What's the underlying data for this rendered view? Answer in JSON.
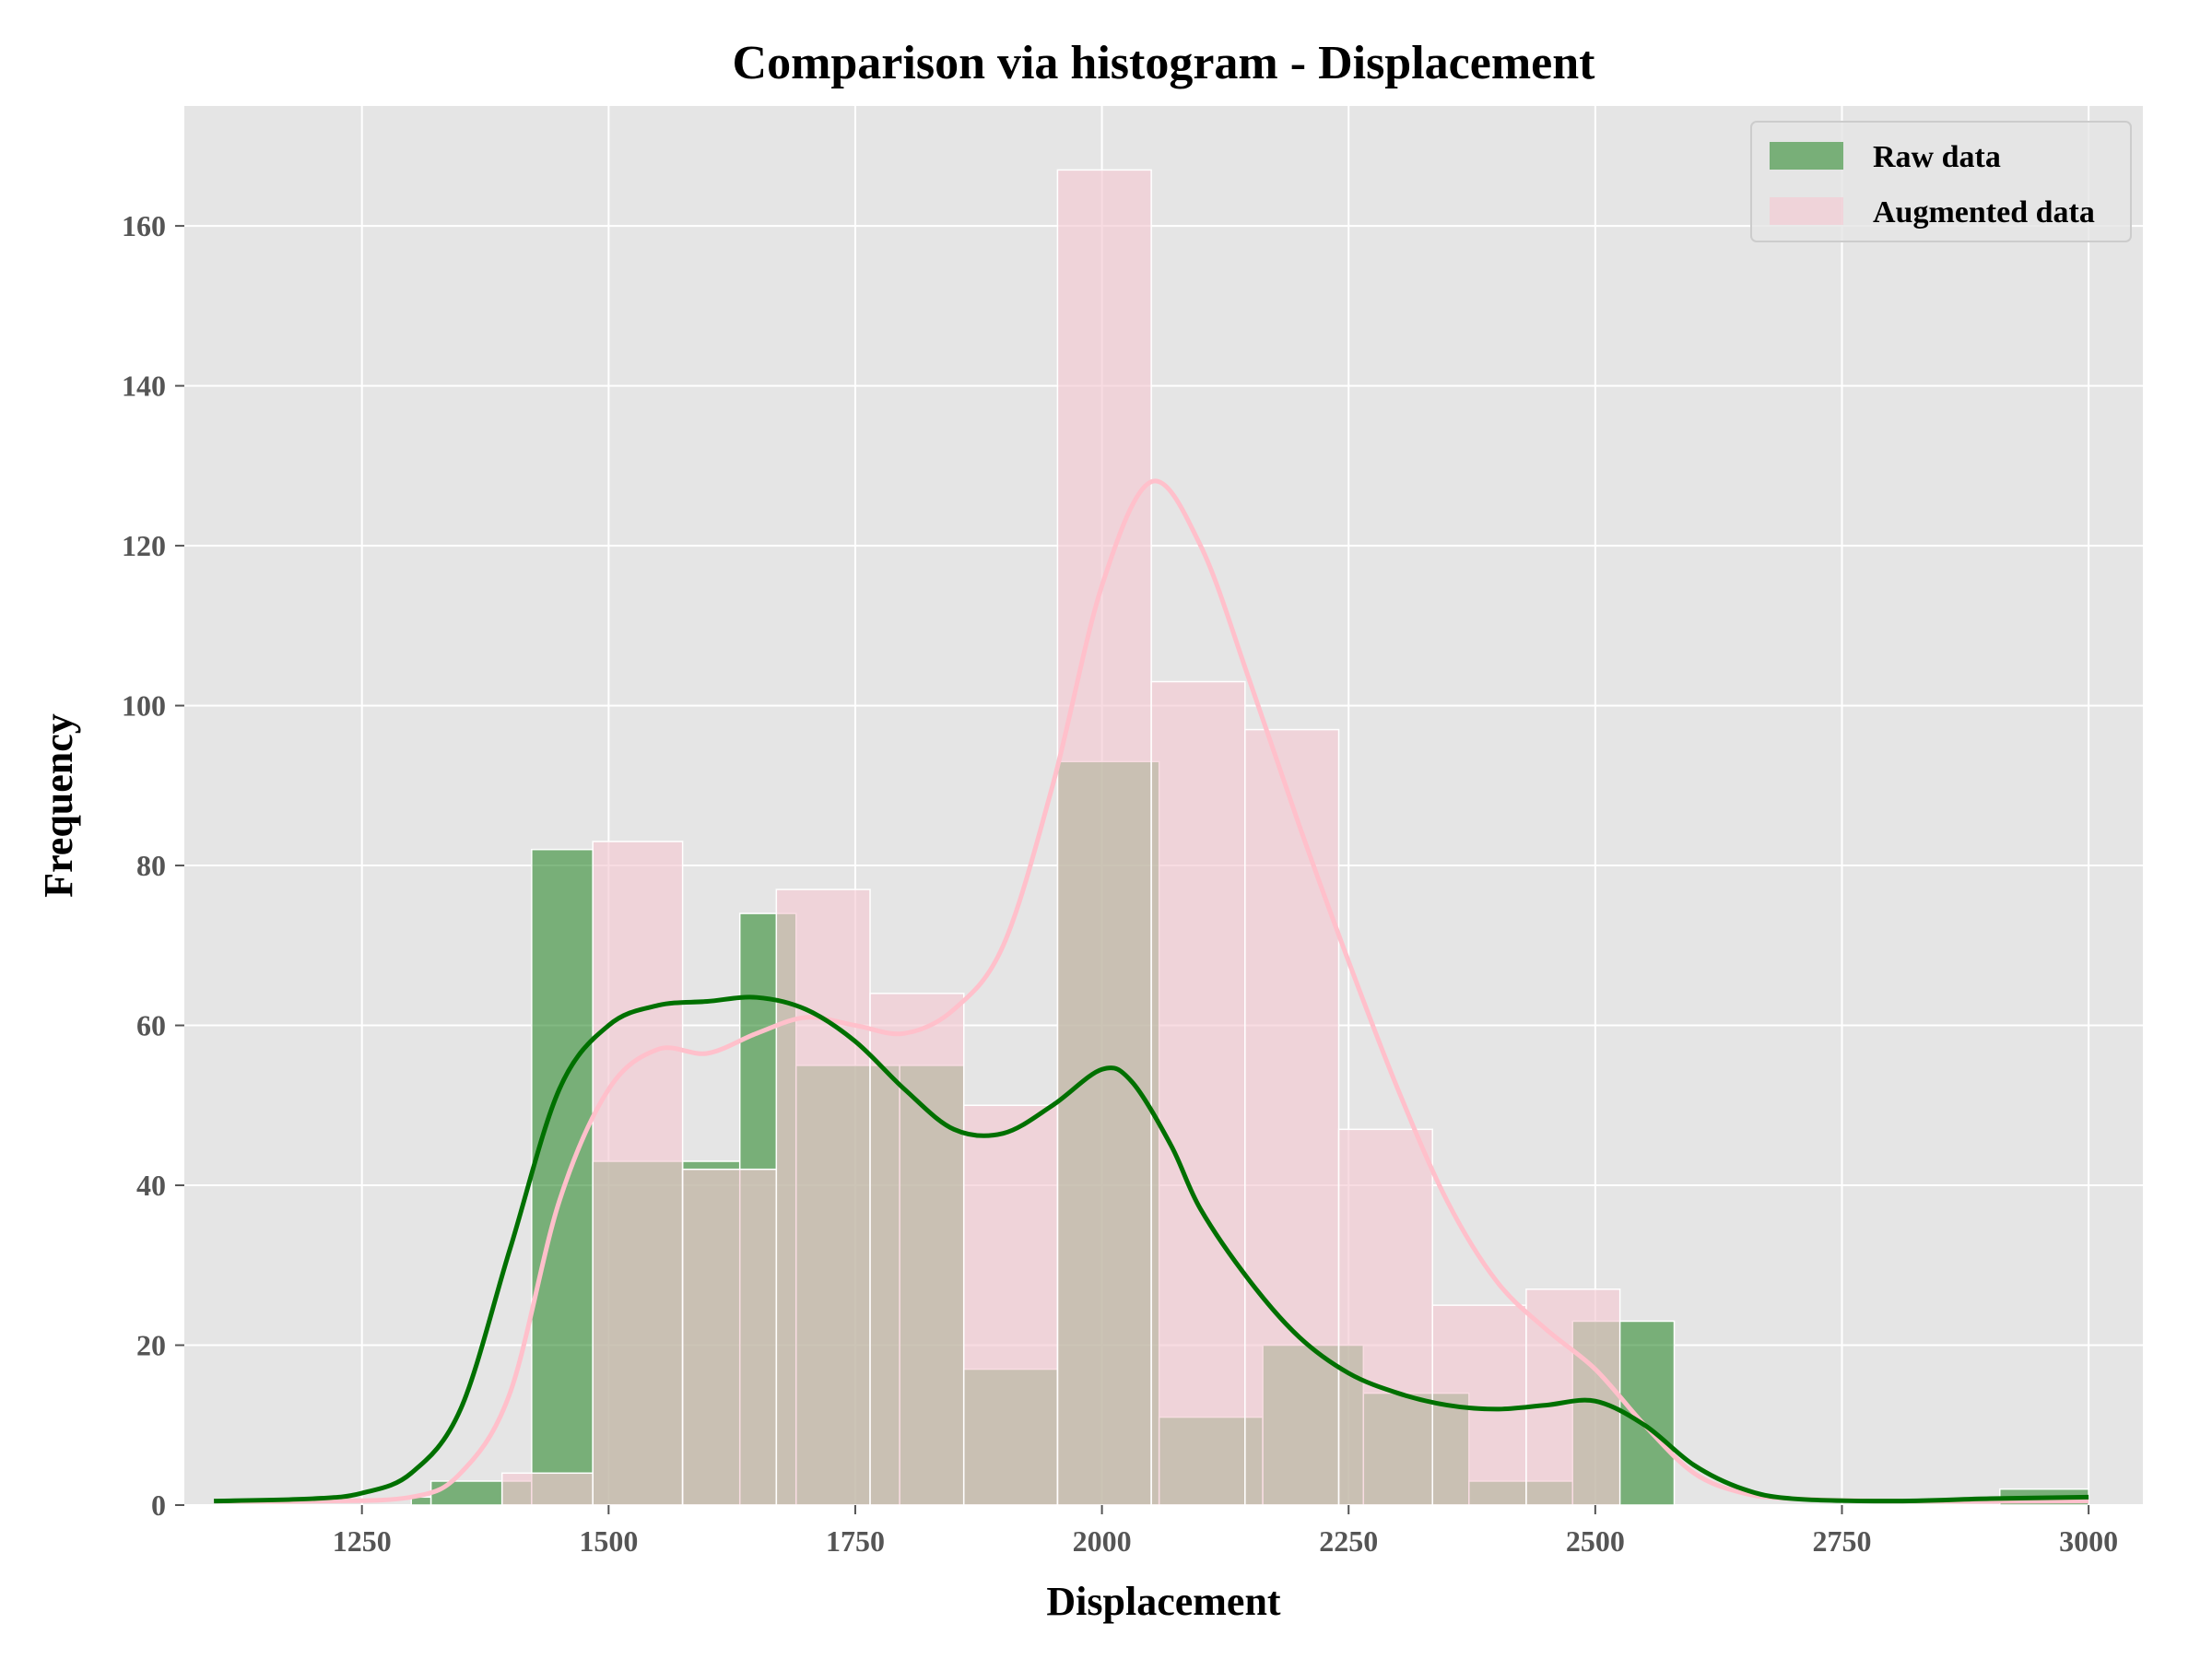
{
  "chart_data": {
    "type": "histogram",
    "title": "Comparison via histogram - Displacement",
    "xlabel": "Displacement",
    "ylabel": "Frequency",
    "xlim": [
      1070,
      3055
    ],
    "ylim": [
      0,
      175
    ],
    "xticks": [
      1250,
      1500,
      1750,
      2000,
      2250,
      2500,
      2750,
      3000
    ],
    "yticks": [
      0,
      20,
      40,
      60,
      80,
      100,
      120,
      140,
      160
    ],
    "grid": true,
    "legend_position": "top-right",
    "background": "#e5e5e5",
    "series": [
      {
        "name": "Raw data",
        "color": "#2e8b2e",
        "kde_color": "#007000",
        "bins": [
          {
            "x0": 1300,
            "x1": 1320,
            "count": 1
          },
          {
            "x0": 1320,
            "x1": 1392,
            "count": 3
          },
          {
            "x0": 1392,
            "x1": 1422,
            "count": 3
          },
          {
            "x0": 1422,
            "x1": 1484,
            "count": 82
          },
          {
            "x0": 1484,
            "x1": 1575,
            "count": 43
          },
          {
            "x0": 1575,
            "x1": 1633,
            "count": 43
          },
          {
            "x0": 1633,
            "x1": 1690,
            "count": 74
          },
          {
            "x0": 1690,
            "x1": 1795,
            "count": 55
          },
          {
            "x0": 1795,
            "x1": 1860,
            "count": 55
          },
          {
            "x0": 1860,
            "x1": 1955,
            "count": 17
          },
          {
            "x0": 1955,
            "x1": 2058,
            "count": 93
          },
          {
            "x0": 2058,
            "x1": 2163,
            "count": 11
          },
          {
            "x0": 2163,
            "x1": 2265,
            "count": 20
          },
          {
            "x0": 2265,
            "x1": 2372,
            "count": 14
          },
          {
            "x0": 2372,
            "x1": 2477,
            "count": 3
          },
          {
            "x0": 2477,
            "x1": 2580,
            "count": 23
          },
          {
            "x0": 2910,
            "x1": 3000,
            "count": 2
          }
        ],
        "kde": [
          [
            1100,
            0.5
          ],
          [
            1200,
            0.8
          ],
          [
            1250,
            1.5
          ],
          [
            1300,
            4
          ],
          [
            1350,
            12
          ],
          [
            1400,
            32
          ],
          [
            1450,
            52
          ],
          [
            1500,
            60
          ],
          [
            1550,
            62.5
          ],
          [
            1600,
            63
          ],
          [
            1650,
            63.5
          ],
          [
            1700,
            62
          ],
          [
            1750,
            58
          ],
          [
            1800,
            52
          ],
          [
            1850,
            47
          ],
          [
            1900,
            46.5
          ],
          [
            1950,
            50
          ],
          [
            2000,
            54.5
          ],
          [
            2030,
            53
          ],
          [
            2070,
            45
          ],
          [
            2100,
            37
          ],
          [
            2150,
            28
          ],
          [
            2200,
            21
          ],
          [
            2250,
            16.5
          ],
          [
            2300,
            14
          ],
          [
            2350,
            12.5
          ],
          [
            2400,
            12
          ],
          [
            2450,
            12.5
          ],
          [
            2500,
            13
          ],
          [
            2550,
            10
          ],
          [
            2600,
            5
          ],
          [
            2650,
            2
          ],
          [
            2700,
            0.8
          ],
          [
            2800,
            0.5
          ],
          [
            2900,
            0.8
          ],
          [
            3000,
            1
          ]
        ]
      },
      {
        "name": "Augmented data",
        "color": "#f4c9d2",
        "kde_color": "#ffc0cb",
        "bins": [
          {
            "x0": 1392,
            "x1": 1484,
            "count": 4
          },
          {
            "x0": 1484,
            "x1": 1575,
            "count": 83
          },
          {
            "x0": 1575,
            "x1": 1670,
            "count": 42
          },
          {
            "x0": 1670,
            "x1": 1765,
            "count": 77
          },
          {
            "x0": 1765,
            "x1": 1860,
            "count": 64
          },
          {
            "x0": 1860,
            "x1": 1955,
            "count": 50
          },
          {
            "x0": 1955,
            "x1": 2050,
            "count": 167
          },
          {
            "x0": 2050,
            "x1": 2145,
            "count": 103
          },
          {
            "x0": 2145,
            "x1": 2240,
            "count": 97
          },
          {
            "x0": 2240,
            "x1": 2335,
            "count": 47
          },
          {
            "x0": 2335,
            "x1": 2430,
            "count": 25
          },
          {
            "x0": 2430,
            "x1": 2525,
            "count": 27
          }
        ],
        "kde": [
          [
            1100,
            0.5
          ],
          [
            1200,
            0.5
          ],
          [
            1300,
            1
          ],
          [
            1350,
            4
          ],
          [
            1400,
            14
          ],
          [
            1450,
            38
          ],
          [
            1500,
            52
          ],
          [
            1550,
            57
          ],
          [
            1600,
            56.5
          ],
          [
            1650,
            59
          ],
          [
            1700,
            61
          ],
          [
            1750,
            60
          ],
          [
            1800,
            59
          ],
          [
            1850,
            62
          ],
          [
            1900,
            70
          ],
          [
            1950,
            90
          ],
          [
            2000,
            115
          ],
          [
            2050,
            128
          ],
          [
            2100,
            120
          ],
          [
            2150,
            103
          ],
          [
            2200,
            85
          ],
          [
            2250,
            68
          ],
          [
            2300,
            52
          ],
          [
            2350,
            38
          ],
          [
            2400,
            28
          ],
          [
            2450,
            22
          ],
          [
            2500,
            17
          ],
          [
            2550,
            10
          ],
          [
            2600,
            4
          ],
          [
            2650,
            1.5
          ],
          [
            2700,
            0.8
          ],
          [
            2800,
            0.5
          ],
          [
            3000,
            0.5
          ]
        ]
      }
    ]
  }
}
